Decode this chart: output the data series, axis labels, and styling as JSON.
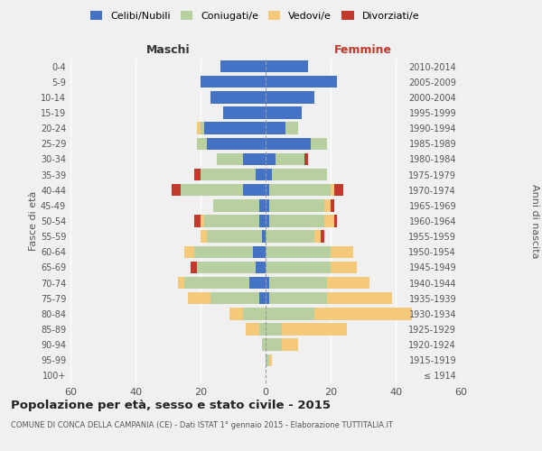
{
  "age_groups": [
    "100+",
    "95-99",
    "90-94",
    "85-89",
    "80-84",
    "75-79",
    "70-74",
    "65-69",
    "60-64",
    "55-59",
    "50-54",
    "45-49",
    "40-44",
    "35-39",
    "30-34",
    "25-29",
    "20-24",
    "15-19",
    "10-14",
    "5-9",
    "0-4"
  ],
  "birth_years": [
    "≤ 1914",
    "1915-1919",
    "1920-1924",
    "1925-1929",
    "1930-1934",
    "1935-1939",
    "1940-1944",
    "1945-1949",
    "1950-1954",
    "1955-1959",
    "1960-1964",
    "1965-1969",
    "1970-1974",
    "1975-1979",
    "1980-1984",
    "1985-1989",
    "1990-1994",
    "1995-1999",
    "2000-2004",
    "2005-2009",
    "2010-2014"
  ],
  "males": {
    "celibi": [
      0,
      0,
      0,
      0,
      0,
      2,
      5,
      3,
      4,
      1,
      2,
      2,
      7,
      3,
      7,
      18,
      19,
      13,
      17,
      20,
      14
    ],
    "coniugati": [
      0,
      0,
      1,
      2,
      7,
      15,
      20,
      18,
      18,
      17,
      17,
      14,
      19,
      17,
      8,
      3,
      1,
      0,
      0,
      0,
      0
    ],
    "vedovi": [
      0,
      0,
      0,
      4,
      4,
      7,
      2,
      0,
      3,
      2,
      1,
      0,
      0,
      0,
      0,
      0,
      1,
      0,
      0,
      0,
      0
    ],
    "divorziati": [
      0,
      0,
      0,
      0,
      0,
      0,
      0,
      2,
      0,
      0,
      2,
      0,
      3,
      2,
      0,
      0,
      0,
      0,
      0,
      0,
      0
    ]
  },
  "females": {
    "nubili": [
      0,
      0,
      0,
      0,
      0,
      1,
      1,
      0,
      0,
      0,
      1,
      1,
      1,
      2,
      3,
      14,
      6,
      11,
      15,
      22,
      13
    ],
    "coniugate": [
      0,
      1,
      5,
      5,
      15,
      18,
      18,
      20,
      20,
      15,
      17,
      17,
      19,
      17,
      9,
      5,
      4,
      0,
      0,
      0,
      0
    ],
    "vedove": [
      0,
      1,
      5,
      20,
      30,
      20,
      13,
      8,
      7,
      2,
      3,
      2,
      1,
      0,
      0,
      0,
      0,
      0,
      0,
      0,
      0
    ],
    "divorziate": [
      0,
      0,
      0,
      0,
      0,
      0,
      0,
      0,
      0,
      1,
      1,
      1,
      3,
      0,
      1,
      0,
      0,
      0,
      0,
      0,
      0
    ]
  },
  "colors": {
    "celibi": "#4472c4",
    "coniugati": "#b8cfa0",
    "vedovi": "#f5c97a",
    "divorziati": "#c0392b"
  },
  "xlim": 60,
  "title": "Popolazione per età, sesso e stato civile - 2015",
  "subtitle": "COMUNE DI CONCA DELLA CAMPANIA (CE) - Dati ISTAT 1° gennaio 2015 - Elaborazione TUTTITALIA.IT",
  "ylabel_left": "Fasce di età",
  "ylabel_right": "Anni di nascita",
  "legend_labels": [
    "Celibi/Nubili",
    "Coniugati/e",
    "Vedovi/e",
    "Divorziati/e"
  ],
  "background_color": "#f0f0f0"
}
